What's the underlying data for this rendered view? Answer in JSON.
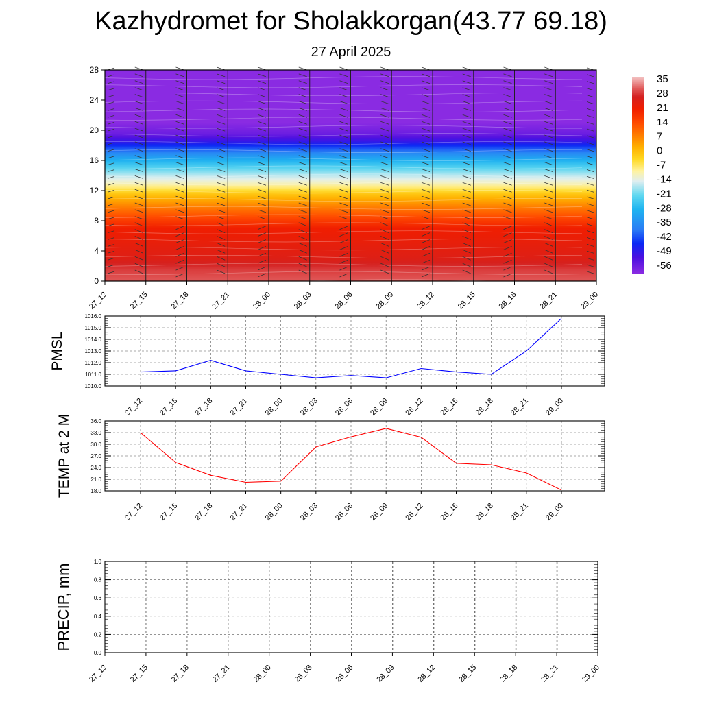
{
  "title": "Kazhydromet for Sholakkorgan(43.77 69.18)",
  "subtitle": "27 April 2025",
  "colors": {
    "pmsl_line": "#0000ff",
    "temp_line": "#ff0000",
    "precip_line": "#006400"
  },
  "chart_data": [
    {
      "type": "heatmap",
      "x_tick_labels": [
        "27_12",
        "27_15",
        "27_18",
        "27_21",
        "28_00",
        "28_03",
        "28_06",
        "28_09",
        "28_12",
        "28_15",
        "28_18",
        "28_21",
        "29_00"
      ],
      "y_ticks": [
        0,
        4,
        8,
        12,
        16,
        20,
        24,
        28
      ],
      "ylim": [
        0,
        28
      ],
      "colorbar_labels": [
        "35",
        "28",
        "21",
        "14",
        "7",
        "0",
        "-7",
        "-14",
        "-21",
        "-28",
        "-35",
        "-42",
        "-49",
        "-56"
      ],
      "colorbar_stops": [
        {
          "value": -60,
          "color": "#8a2be2"
        },
        {
          "value": -52,
          "color": "#4b0fe0"
        },
        {
          "value": -45,
          "color": "#0a28f5"
        },
        {
          "value": -38,
          "color": "#2a7df5"
        },
        {
          "value": -28,
          "color": "#1eb4f0"
        },
        {
          "value": -21,
          "color": "#60d8f0"
        },
        {
          "value": -14,
          "color": "#e0eef0"
        },
        {
          "value": -9,
          "color": "#fff3a0"
        },
        {
          "value": -3,
          "color": "#ffd820"
        },
        {
          "value": 3,
          "color": "#ffb000"
        },
        {
          "value": 9,
          "color": "#ff7c00"
        },
        {
          "value": 15,
          "color": "#ff4a00"
        },
        {
          "value": 22,
          "color": "#f01e00"
        },
        {
          "value": 28,
          "color": "#d42020"
        },
        {
          "value": 32,
          "color": "#e05858"
        },
        {
          "value": 38,
          "color": "#f4c4c4"
        }
      ],
      "temperature_profile": [
        {
          "h": 0,
          "t": 32
        },
        {
          "h": 1.5,
          "t": 30
        },
        {
          "h": 3,
          "t": 26
        },
        {
          "h": 5,
          "t": 24
        },
        {
          "h": 7,
          "t": 22
        },
        {
          "h": 8.5,
          "t": 15
        },
        {
          "h": 10,
          "t": 8
        },
        {
          "h": 11.5,
          "t": 0
        },
        {
          "h": 12.8,
          "t": -10
        },
        {
          "h": 14,
          "t": -16
        },
        {
          "h": 15.5,
          "t": -25
        },
        {
          "h": 17,
          "t": -36
        },
        {
          "h": 18.3,
          "t": -48
        },
        {
          "h": 19.5,
          "t": -56
        },
        {
          "h": 21,
          "t": -60
        },
        {
          "h": 28,
          "t": -60
        }
      ]
    },
    {
      "type": "line",
      "ylabel": "PMSL",
      "x_tick_labels": [
        "27_12",
        "27_15",
        "27_18",
        "27_21",
        "28_00",
        "28_03",
        "28_06",
        "28_09",
        "28_12",
        "28_15",
        "28_18",
        "28_21",
        "29_00"
      ],
      "y_tick_labels": [
        "1016.0",
        "1015.0",
        "1014.0",
        "1013.0",
        "1012.0",
        "1011.0",
        "1010.0"
      ],
      "ylim": [
        1010.0,
        1016.0
      ],
      "values": [
        1011.2,
        1011.3,
        1012.2,
        1011.3,
        1011.0,
        1010.7,
        1010.9,
        1010.7,
        1011.5,
        1011.2,
        1011.0,
        1013.0,
        1015.8
      ],
      "grid": true
    },
    {
      "type": "line",
      "ylabel": "TEMP at 2 M",
      "x_tick_labels": [
        "27_12",
        "27_15",
        "27_18",
        "27_21",
        "28_00",
        "28_03",
        "28_06",
        "28_09",
        "28_12",
        "28_15",
        "28_18",
        "28_21",
        "29_00"
      ],
      "y_tick_labels": [
        "36.0",
        "33.0",
        "30.0",
        "27.0",
        "24.0",
        "21.0",
        "18.0"
      ],
      "ylim": [
        18.0,
        36.0
      ],
      "values": [
        33.0,
        25.3,
        22.0,
        20.2,
        20.5,
        29.3,
        31.9,
        34.1,
        31.8,
        25.1,
        24.7,
        22.6,
        18.2
      ],
      "grid": true
    },
    {
      "type": "line",
      "ylabel": "PRECIP, mm",
      "x_tick_labels": [
        "27_12",
        "27_15",
        "27_18",
        "27_21",
        "28_00",
        "28_03",
        "28_06",
        "28_09",
        "28_12",
        "28_15",
        "28_18",
        "28_21",
        "29_00"
      ],
      "y_tick_labels": [
        "1.0",
        "0.8",
        "0.6",
        "0.4",
        "0.2",
        "0.0"
      ],
      "ylim": [
        0.0,
        1.0
      ],
      "values": [
        0,
        0,
        0,
        0,
        0,
        0,
        0,
        0,
        0,
        0,
        0,
        0,
        0
      ],
      "grid": true
    }
  ]
}
